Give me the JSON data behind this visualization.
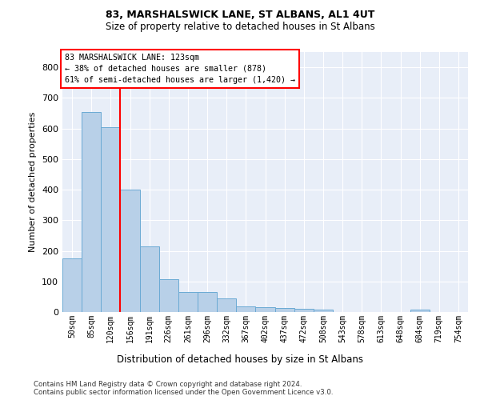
{
  "title1": "83, MARSHALSWICK LANE, ST ALBANS, AL1 4UT",
  "title2": "Size of property relative to detached houses in St Albans",
  "xlabel": "Distribution of detached houses by size in St Albans",
  "ylabel": "Number of detached properties",
  "footer1": "Contains HM Land Registry data © Crown copyright and database right 2024.",
  "footer2": "Contains public sector information licensed under the Open Government Licence v3.0.",
  "bin_labels": [
    "50sqm",
    "85sqm",
    "120sqm",
    "156sqm",
    "191sqm",
    "226sqm",
    "261sqm",
    "296sqm",
    "332sqm",
    "367sqm",
    "402sqm",
    "437sqm",
    "472sqm",
    "508sqm",
    "543sqm",
    "578sqm",
    "613sqm",
    "648sqm",
    "684sqm",
    "719sqm",
    "754sqm"
  ],
  "bar_values": [
    175,
    655,
    605,
    400,
    215,
    108,
    65,
    65,
    45,
    18,
    16,
    14,
    10,
    8,
    0,
    0,
    0,
    0,
    8,
    0,
    0
  ],
  "bar_color": "#b8d0e8",
  "bar_edge_color": "#6aaad4",
  "ylim": [
    0,
    850
  ],
  "yticks": [
    0,
    100,
    200,
    300,
    400,
    500,
    600,
    700,
    800
  ],
  "annotation_text_line1": "83 MARSHALSWICK LANE: 123sqm",
  "annotation_text_line2": "← 38% of detached houses are smaller (878)",
  "annotation_text_line3": "61% of semi-detached houses are larger (1,420) →",
  "bg_color": "#e8eef8",
  "grid_color": "#ffffff"
}
